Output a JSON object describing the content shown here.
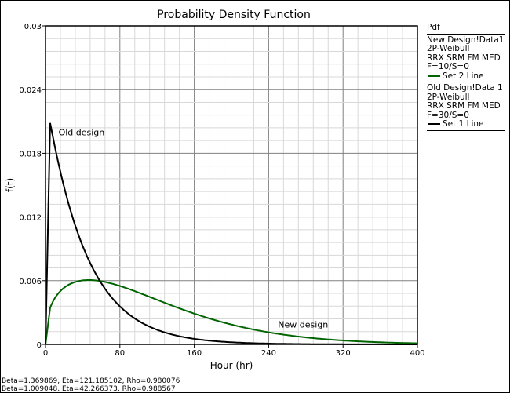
{
  "chart_data": {
    "type": "line",
    "title": "Probability Density Function",
    "xlabel": "Hour (hr)",
    "ylabel": "f(t)",
    "xlim": [
      0,
      400
    ],
    "ylim": [
      0,
      0.03
    ],
    "x_ticks": [
      "0",
      "80",
      "160",
      "240",
      "320",
      "400"
    ],
    "y_ticks": [
      "0",
      "0.006",
      "0.012",
      "0.018",
      "0.024",
      "0.03"
    ],
    "grid": true,
    "series": [
      {
        "name": "Set 2 Line",
        "distribution": "2P-Weibull",
        "beta": 1.369869,
        "eta": 121.185102,
        "color": "#006400"
      },
      {
        "name": "Set 1 Line",
        "distribution": "2P-Weibull",
        "beta": 1.009048,
        "eta": 42.266373,
        "color": "#000000"
      }
    ],
    "annotations": [
      {
        "text": "Old design",
        "x": 14,
        "y": 0.0197
      },
      {
        "text": "New design",
        "x": 250,
        "y": 0.0016
      }
    ]
  },
  "legend": {
    "header": "Pdf",
    "entries": [
      {
        "lines": [
          "New Design!Data1",
          "2P-Weibull",
          "RRX SRM FM MED",
          "F=10/S=0"
        ],
        "line_label": "Set 2 Line",
        "color": "#006400"
      },
      {
        "lines": [
          "Old Design!Data 1",
          "2P-Weibull",
          "RRX SRM FM MED",
          "F=30/S=0"
        ],
        "line_label": "Set 1 Line",
        "color": "#000000"
      }
    ]
  },
  "footer": [
    "Beta=1.369869, Eta=121.185102, Rho=0.980076",
    "Beta=1.009048, Eta=42.266373, Rho=0.988567"
  ]
}
